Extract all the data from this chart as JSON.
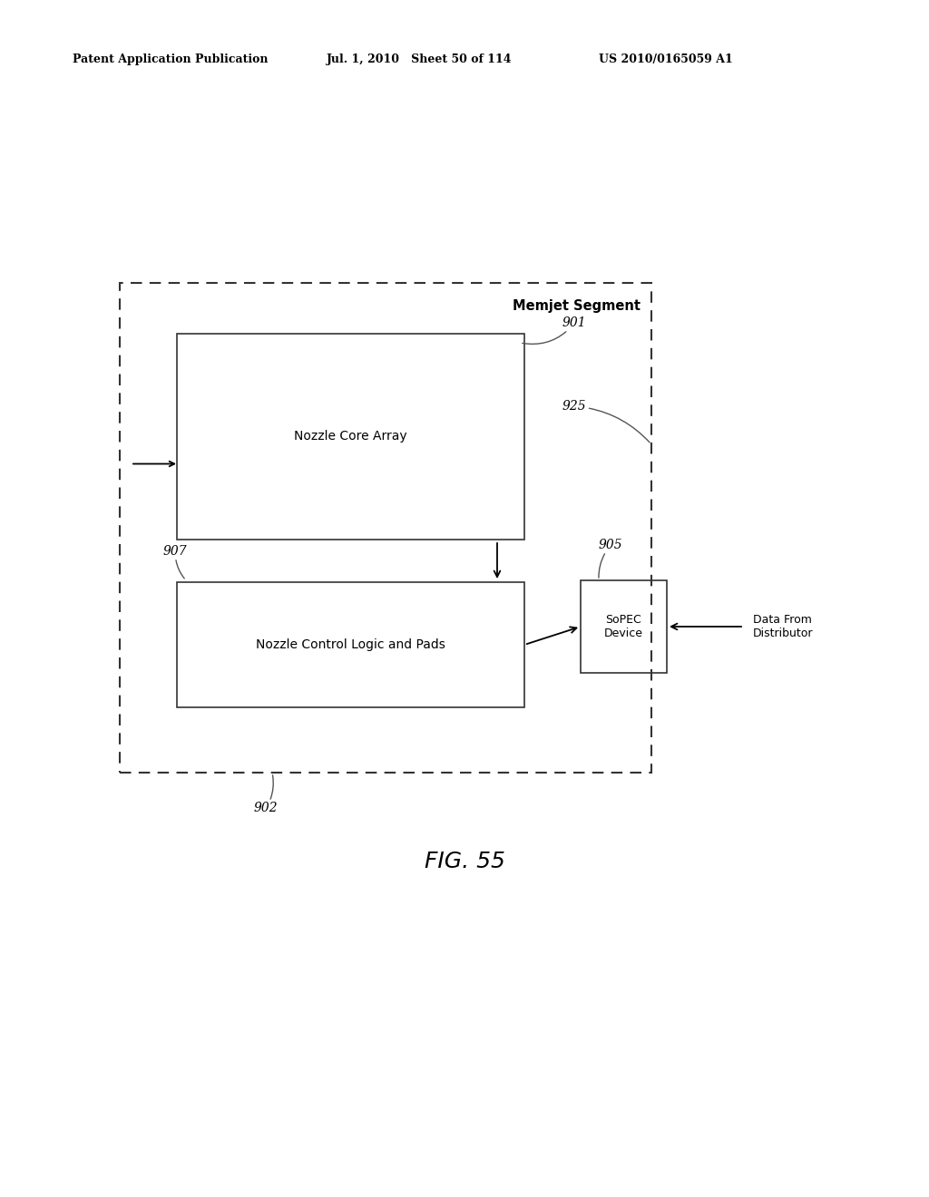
{
  "header_left": "Patent Application Publication",
  "header_mid": "Jul. 1, 2010   Sheet 50 of 114",
  "header_right": "US 2010/0165059 A1",
  "title": "Memjet Segment",
  "label_901": "901",
  "label_902": "902",
  "label_903": "905",
  "label_907": "907",
  "label_925": "925",
  "box_nozzle_core_label": "Nozzle Core Array",
  "box_nozzle_control_label": "Nozzle Control Logic and Pads",
  "box_sopec_label": "SoPEC\nDevice",
  "label_data_from": "Data From\nDistributor",
  "fig_label": "FIG. 55",
  "bg_color": "#ffffff",
  "line_color": "#000000"
}
